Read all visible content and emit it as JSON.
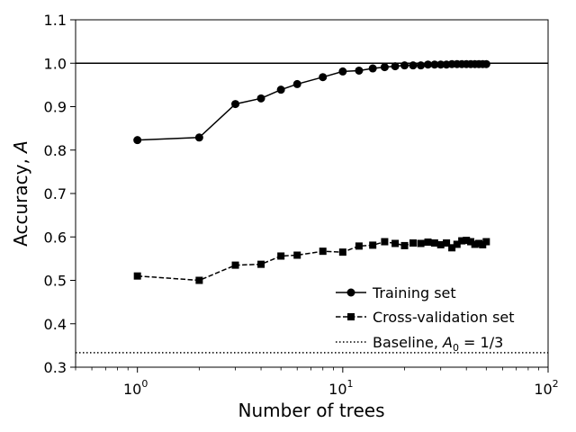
{
  "chart_data": {
    "type": "line",
    "xscale": "log",
    "xlim": [
      0.5,
      100
    ],
    "ylim": [
      0.3,
      1.1
    ],
    "xlabel": "Number of trees",
    "ylabel": "Accuracy, A",
    "xticks": [
      {
        "value": 1,
        "base": "10",
        "exp": "0"
      },
      {
        "value": 10,
        "base": "10",
        "exp": "1"
      },
      {
        "value": 100,
        "base": "10",
        "exp": "2"
      }
    ],
    "yticks": [
      "0.3",
      "0.4",
      "0.5",
      "0.6",
      "0.7",
      "0.8",
      "0.9",
      "1.0",
      "1.1"
    ],
    "grid": false,
    "legend_position": "lower-right",
    "x": [
      1,
      2,
      3,
      4,
      5,
      6,
      8,
      10,
      12,
      14,
      16,
      18,
      20,
      22,
      24,
      26,
      28,
      30,
      32,
      34,
      36,
      38,
      40,
      42,
      44,
      46,
      48,
      50
    ],
    "series": [
      {
        "name": "Training set",
        "marker": "circle",
        "linestyle": "solid",
        "color": "#000000",
        "values": [
          0.823,
          0.829,
          0.906,
          0.919,
          0.939,
          0.952,
          0.968,
          0.981,
          0.983,
          0.988,
          0.991,
          0.993,
          0.995,
          0.995,
          0.995,
          0.997,
          0.997,
          0.997,
          0.997,
          0.998,
          0.998,
          0.998,
          0.998,
          0.998,
          0.998,
          0.998,
          0.998,
          0.998
        ]
      },
      {
        "name": "Cross-validation set",
        "marker": "square",
        "linestyle": "dashed",
        "color": "#000000",
        "values": [
          0.51,
          0.5,
          0.535,
          0.537,
          0.556,
          0.558,
          0.567,
          0.565,
          0.579,
          0.581,
          0.589,
          0.585,
          0.58,
          0.586,
          0.585,
          0.588,
          0.586,
          0.582,
          0.586,
          0.575,
          0.583,
          0.591,
          0.592,
          0.589,
          0.583,
          0.585,
          0.582,
          0.589
        ]
      }
    ],
    "reference_lines": [
      {
        "y": 1.0,
        "linestyle": "solid",
        "color": "#000000"
      },
      {
        "y": 0.3333333,
        "linestyle": "dotted",
        "color": "#000000",
        "legend": "Baseline, A0 = 1/3"
      }
    ],
    "legend": {
      "training": "Training set",
      "crossval": "Cross-validation set",
      "baseline_prefix": "Baseline, ",
      "baseline_var": "A",
      "baseline_sub": "0",
      "baseline_suffix": " = 1/3"
    },
    "ylabel_parts": {
      "text": "Accuracy, ",
      "var": "A"
    }
  }
}
